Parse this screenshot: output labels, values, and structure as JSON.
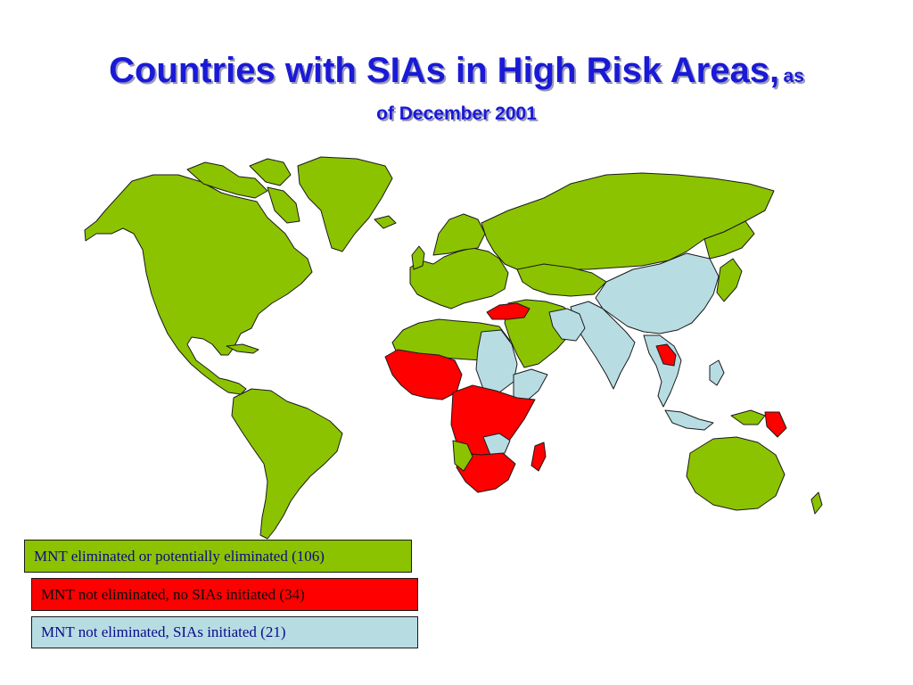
{
  "title": {
    "main": "Countries with SIAs in High Risk Areas,",
    "suffix": "as",
    "line2": "of December 2001"
  },
  "colors": {
    "eliminated": "#8cc300",
    "not_eliminated_no_sias": "#ff0000",
    "not_eliminated_sias": "#b7dde3",
    "title": "#1a1ad6"
  },
  "legend": {
    "items": [
      {
        "key": "eliminated",
        "label": "MNT eliminated or potentially eliminated (106)"
      },
      {
        "key": "not_eliminated_no_sias",
        "label": "MNT not eliminated, no SIAs initiated (34)"
      },
      {
        "key": "not_eliminated_sias",
        "label": "MNT not eliminated, SIAs initiated (21)"
      }
    ]
  }
}
